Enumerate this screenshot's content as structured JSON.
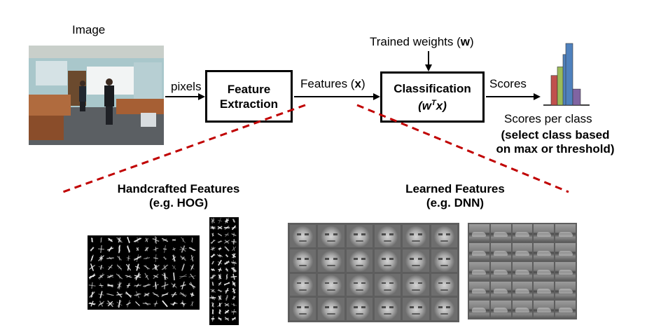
{
  "labels": {
    "image": "Image",
    "pixels": "pixels",
    "feature_box_line1": "Feature",
    "feature_box_line2": "Extraction",
    "features_prefix": "Features (",
    "features_var": "x",
    "features_suffix": ")",
    "trained_prefix": "Trained weights (",
    "trained_var": "w",
    "trained_suffix": ")",
    "class_box_line1": "Classification",
    "class_box_formula_base": "(w",
    "class_box_formula_sup": "T",
    "class_box_formula_end": "x)",
    "scores": "Scores",
    "scores_per_class": "Scores per class",
    "select_line1": "(select class based",
    "select_line2": "on max or threshold)",
    "handcrafted_line1": "Handcrafted Features",
    "handcrafted_line2": "(e.g. HOG)",
    "learned_line1": "Learned Features",
    "learned_line2": "(e.g. DNN)"
  },
  "colors": {
    "dash_line": "#c00000",
    "bar_red": "#c0504d",
    "bar_green": "#9bbb59",
    "bar_blue": "#4f81bd",
    "bar_purple": "#8064a2"
  },
  "score_bars": [
    0.48,
    0.62,
    0.82,
    1.0,
    0.26
  ]
}
